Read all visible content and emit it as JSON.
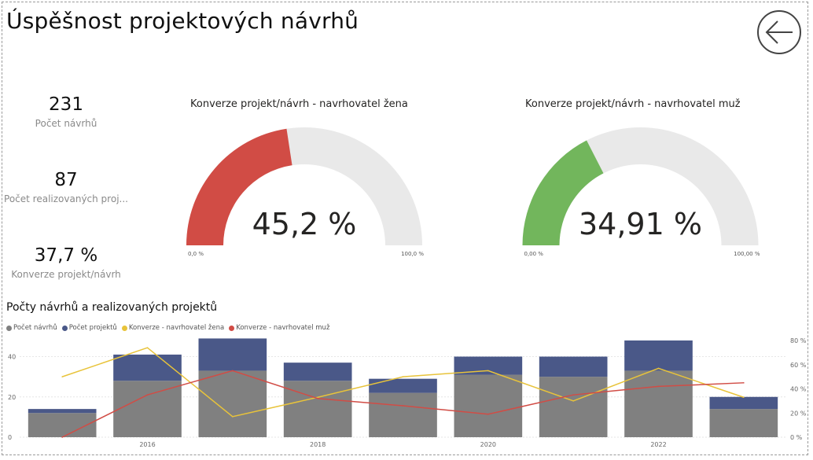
{
  "page": {
    "title": "Úspěšnost projektových návrhů"
  },
  "kpis": [
    {
      "value": "231",
      "label": "Počet návrhů"
    },
    {
      "value": "87",
      "label": "Počet realizovaných proj..."
    },
    {
      "value": "37,7 %",
      "label": "Konverze projekt/návrh"
    }
  ],
  "gauges": [
    {
      "title": "Konverze projekt/návrh - navrhovatel žena",
      "value_label": "45,2 %",
      "value": 45.2,
      "min_label": "0,0 %",
      "max_label": "100,0 %",
      "color": "#d14c45"
    },
    {
      "title": "Konverze projekt/návrh - navrhovatel muž",
      "value_label": "34,91 %",
      "value": 34.91,
      "min_label": "0,00 %",
      "max_label": "100,00 %",
      "color": "#72b65c"
    }
  ],
  "chart_title": "Počty návrhů a realizovaných projektů",
  "chart_data": {
    "type": "bar",
    "stacked": true,
    "categories": [
      "2015",
      "2016",
      "2017",
      "2018",
      "2019",
      "2020",
      "2021",
      "2022",
      "2023"
    ],
    "x_tick_labels": [
      "2016",
      "2018",
      "2020",
      "2022"
    ],
    "y_ticks_left": [
      "0",
      "20",
      "40"
    ],
    "y_ticks_right": [
      "0 %",
      "20 %",
      "40 %",
      "60 %",
      "80 %"
    ],
    "ylim_left": [
      0,
      48
    ],
    "ylim_right": [
      0,
      80
    ],
    "series": [
      {
        "name": "Počet návrhů",
        "kind": "bar",
        "color": "#808080",
        "values": [
          12,
          28,
          33,
          28,
          22,
          31,
          30,
          33,
          14
        ]
      },
      {
        "name": "Počet projektů",
        "kind": "bar",
        "color": "#4a5888",
        "values": [
          2,
          13,
          16,
          9,
          7,
          9,
          10,
          15,
          6
        ]
      },
      {
        "name": "Konverze - navrhovatel žena",
        "kind": "line",
        "axis": "right",
        "color": "#e8c33a",
        "values": [
          50,
          74,
          17,
          33,
          50,
          55,
          30,
          57,
          33
        ]
      },
      {
        "name": "Konverze - navrhovatel muž",
        "kind": "line",
        "axis": "right",
        "color": "#d14c45",
        "values": [
          0,
          35,
          55,
          32,
          26,
          19,
          35,
          42,
          45
        ]
      }
    ],
    "legend_position": "top-left",
    "grid": true
  }
}
